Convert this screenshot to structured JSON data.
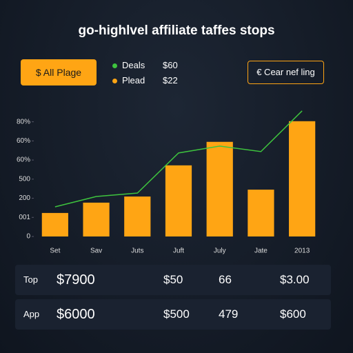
{
  "header": {
    "title": "go-highlvel affiliate taffes stops"
  },
  "buttons": {
    "left": "$ All Plage",
    "right": "€ Cear nef ling"
  },
  "legend_amounts": [
    "$60",
    "$22"
  ],
  "chart_data": {
    "type": "bar",
    "categories": [
      "Set",
      "Sav",
      "Juts",
      "Juft",
      "July",
      "Jate",
      "2013"
    ],
    "series": [
      {
        "name": "Deals",
        "type": "line",
        "color": "#3ec43e",
        "values": [
          155,
          209,
          227,
          437,
          473,
          444,
          657
        ]
      },
      {
        "name": "Plead",
        "type": "bar",
        "color": "#ffa514",
        "values": [
          123,
          177,
          209,
          372,
          495,
          245,
          603
        ]
      }
    ],
    "ylim": [
      0,
      660
    ],
    "yticks": [
      0,
      {
        "value": 100,
        "label": "001"
      },
      200,
      {
        "value": 300,
        "label": "500"
      },
      {
        "value": 400,
        "label": "60%"
      },
      {
        "value": 500,
        "label": "60%"
      },
      {
        "value": 600,
        "label": "80%"
      }
    ]
  },
  "table": {
    "rows": [
      [
        "Top",
        "$7900",
        "$50",
        "66",
        "$3.00"
      ],
      [
        "App",
        "$6000",
        "$500",
        "479",
        "$600"
      ]
    ]
  }
}
